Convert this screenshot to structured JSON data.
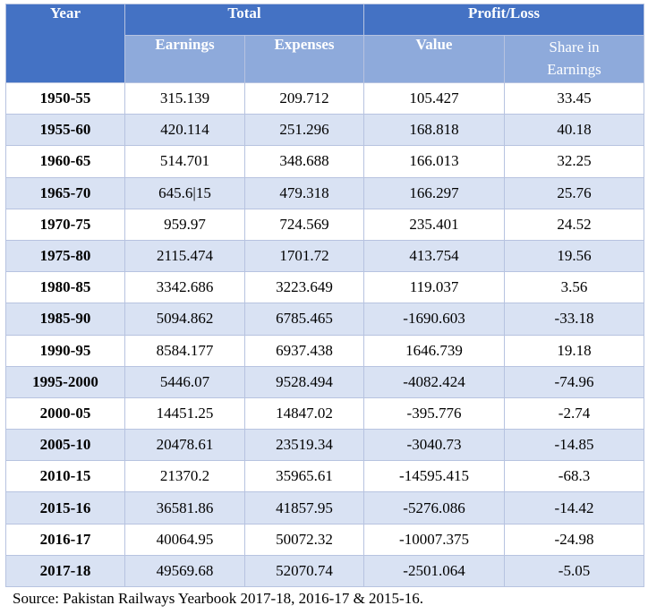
{
  "table": {
    "headers": {
      "year": "Year",
      "total": "Total",
      "profit_loss": "Profit/Loss",
      "earnings": "Earnings",
      "expenses": "Expenses",
      "value": "Value",
      "share_line1": "Share in",
      "share_line2": "Earnings"
    },
    "rows": [
      [
        "1950-55",
        "315.139",
        "209.712",
        "105.427",
        "33.45"
      ],
      [
        "1955-60",
        "420.114",
        "251.296",
        "168.818",
        "40.18"
      ],
      [
        "1960-65",
        "514.701",
        "348.688",
        "166.013",
        "32.25"
      ],
      [
        "1965-70",
        "645.6|15",
        "479.318",
        "166.297",
        "25.76"
      ],
      [
        "1970-75",
        "959.97",
        "724.569",
        "235.401",
        "24.52"
      ],
      [
        "1975-80",
        "2115.474",
        "1701.72",
        "413.754",
        "19.56"
      ],
      [
        "1980-85",
        "3342.686",
        "3223.649",
        "119.037",
        "3.56"
      ],
      [
        "1985-90",
        "5094.862",
        "6785.465",
        "-1690.603",
        "-33.18"
      ],
      [
        "1990-95",
        "8584.177",
        "6937.438",
        "1646.739",
        "19.18"
      ],
      [
        "1995-2000",
        "5446.07",
        "9528.494",
        "-4082.424",
        "-74.96"
      ],
      [
        "2000-05",
        "14451.25",
        "14847.02",
        "-395.776",
        "-2.74"
      ],
      [
        "2005-10",
        "20478.61",
        "23519.34",
        "-3040.73",
        "-14.85"
      ],
      [
        "2010-15",
        "21370.2",
        "35965.61",
        "-14595.415",
        "-68.3"
      ],
      [
        "2015-16",
        "36581.86",
        "41857.95",
        "-5276.086",
        "-14.42"
      ],
      [
        "2016-17",
        "40064.95",
        "50072.32",
        "-10007.375",
        "-24.98"
      ],
      [
        "2017-18",
        "49569.68",
        "52070.74",
        "-2501.064",
        "-5.05"
      ]
    ]
  },
  "source": "Source: Pakistan Railways Yearbook 2017-18, 2016-17 & 2015-16."
}
